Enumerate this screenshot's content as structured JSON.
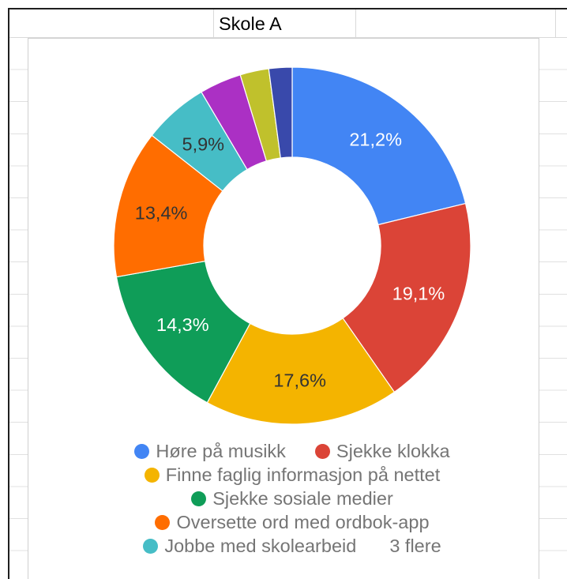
{
  "sheet": {
    "cell_text": "Skole A"
  },
  "chart_data": {
    "type": "pie",
    "donut": true,
    "slices": [
      {
        "label": "Høre på musikk",
        "value": 21.2,
        "data_label": "21,2%",
        "color": "#4285F4",
        "label_color": "#FFFFFF"
      },
      {
        "label": "Sjekke klokka",
        "value": 19.1,
        "data_label": "19,1%",
        "color": "#DB4437",
        "label_color": "#FFFFFF"
      },
      {
        "label": "Finne faglig informasjon på nettet",
        "value": 17.6,
        "data_label": "17,6%",
        "color": "#F4B400",
        "label_color": "#333333"
      },
      {
        "label": "Sjekke sosiale medier",
        "value": 14.3,
        "data_label": "14,3%",
        "color": "#0F9D58",
        "label_color": "#FFFFFF"
      },
      {
        "label": "Oversette ord med ordbok-app",
        "value": 13.4,
        "data_label": "13,4%",
        "color": "#FF6D00",
        "label_color": "#333333"
      },
      {
        "label": "Jobbe med skolearbeid",
        "value": 5.9,
        "data_label": "5,9%",
        "color": "#46BDC6",
        "label_color": "#333333"
      },
      {
        "value": 3.8,
        "color": "#AB30C4"
      },
      {
        "value": 2.6,
        "color": "#C0C12C"
      },
      {
        "value": 2.1,
        "color": "#3949AB"
      }
    ],
    "legend_position": "bottom",
    "legend_more_label": "3 flere",
    "legend_text_color": "#757575"
  }
}
